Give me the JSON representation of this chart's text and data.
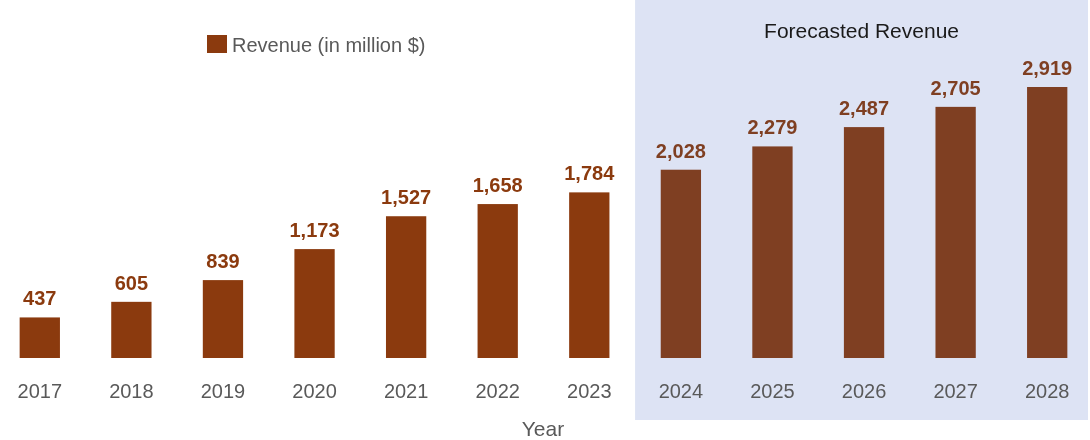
{
  "chart_data": {
    "type": "bar",
    "xlabel": "Year",
    "categories": [
      "2017",
      "2018",
      "2019",
      "2020",
      "2021",
      "2022",
      "2023",
      "2024",
      "2025",
      "2026",
      "2027",
      "2028"
    ],
    "series": [
      {
        "name": "Revenue (in million $)",
        "color": "#8b3a0e",
        "colors": [
          "#8b3a0e",
          "#8b3a0e",
          "#8b3a0e",
          "#8b3a0e",
          "#8b3a0e",
          "#8b3a0e",
          "#8b3a0e",
          "#7f3f22",
          "#7f3f22",
          "#7f3f22",
          "#7f3f22",
          "#7f3f22"
        ],
        "values": [
          437,
          605,
          839,
          1173,
          1527,
          1658,
          1784,
          2028,
          2279,
          2487,
          2705,
          2919
        ],
        "value_labels": [
          "437",
          "605",
          "839",
          "1,173",
          "1,527",
          "1,658",
          "1,784",
          "2,028",
          "2,279",
          "2,487",
          "2,705",
          "2,919"
        ]
      }
    ],
    "legend": "top left",
    "bands": [
      {
        "axis": "x",
        "from": "2024",
        "to": "2028",
        "label": "Forecasted Revenue",
        "color": "#dde3f4"
      }
    ]
  }
}
